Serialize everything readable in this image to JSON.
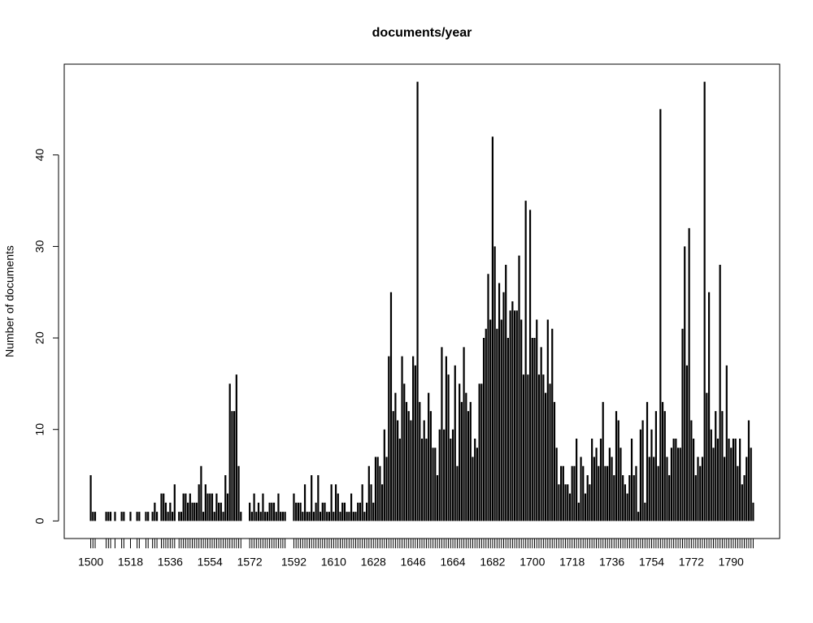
{
  "chart_data": {
    "type": "bar",
    "title": "documents/year",
    "y_label": "Number of documents",
    "color": "#000000",
    "x": [
      1500,
      1501,
      1502,
      1507,
      1508,
      1509,
      1511,
      1514,
      1515,
      1518,
      1521,
      1522,
      1525,
      1526,
      1528,
      1529,
      1530,
      1532,
      1533,
      1534,
      1535,
      1536,
      1537,
      1538,
      1540,
      1541,
      1542,
      1543,
      1544,
      1545,
      1546,
      1547,
      1548,
      1549,
      1550,
      1551,
      1552,
      1553,
      1554,
      1555,
      1556,
      1557,
      1558,
      1559,
      1560,
      1561,
      1562,
      1563,
      1564,
      1565,
      1566,
      1567,
      1568,
      1572,
      1573,
      1574,
      1575,
      1576,
      1577,
      1578,
      1579,
      1580,
      1581,
      1582,
      1583,
      1584,
      1585,
      1586,
      1587,
      1588,
      1592,
      1593,
      1594,
      1595,
      1596,
      1597,
      1598,
      1599,
      1600,
      1601,
      1602,
      1603,
      1604,
      1605,
      1606,
      1607,
      1608,
      1609,
      1610,
      1611,
      1612,
      1613,
      1614,
      1615,
      1616,
      1617,
      1618,
      1619,
      1620,
      1621,
      1622,
      1623,
      1624,
      1625,
      1626,
      1627,
      1628,
      1629,
      1630,
      1631,
      1632,
      1633,
      1634,
      1635,
      1636,
      1637,
      1638,
      1639,
      1640,
      1641,
      1642,
      1643,
      1644,
      1645,
      1646,
      1647,
      1648,
      1649,
      1650,
      1651,
      1652,
      1653,
      1654,
      1655,
      1656,
      1657,
      1658,
      1659,
      1660,
      1661,
      1662,
      1663,
      1664,
      1665,
      1666,
      1667,
      1668,
      1669,
      1670,
      1671,
      1672,
      1673,
      1674,
      1675,
      1676,
      1677,
      1678,
      1679,
      1680,
      1681,
      1682,
      1683,
      1684,
      1685,
      1686,
      1687,
      1688,
      1689,
      1690,
      1691,
      1692,
      1693,
      1694,
      1695,
      1696,
      1697,
      1698,
      1699,
      1700,
      1701,
      1702,
      1703,
      1704,
      1705,
      1706,
      1707,
      1708,
      1709,
      1710,
      1711,
      1712,
      1713,
      1714,
      1715,
      1716,
      1717,
      1718,
      1719,
      1720,
      1721,
      1722,
      1723,
      1724,
      1725,
      1726,
      1727,
      1728,
      1729,
      1730,
      1731,
      1732,
      1733,
      1734,
      1735,
      1736,
      1737,
      1738,
      1739,
      1740,
      1741,
      1742,
      1743,
      1744,
      1745,
      1746,
      1747,
      1748,
      1749,
      1750,
      1751,
      1752,
      1753,
      1754,
      1755,
      1756,
      1757,
      1758,
      1759,
      1760,
      1761,
      1762,
      1763,
      1764,
      1765,
      1766,
      1767,
      1768,
      1769,
      1770,
      1771,
      1772,
      1773,
      1774,
      1775,
      1776,
      1777,
      1778,
      1779,
      1780,
      1781,
      1782,
      1783,
      1784,
      1785,
      1786,
      1787,
      1788,
      1789,
      1790,
      1791,
      1792,
      1793,
      1794,
      1795,
      1796,
      1797,
      1798,
      1799,
      1800
    ],
    "values": [
      5,
      1,
      1,
      1,
      1,
      1,
      1,
      1,
      1,
      1,
      1,
      1,
      1,
      1,
      1,
      2,
      1,
      3,
      3,
      2,
      1,
      2,
      1,
      4,
      1,
      1,
      3,
      3,
      2,
      3,
      2,
      2,
      2,
      4,
      6,
      1,
      4,
      3,
      3,
      3,
      1,
      3,
      2,
      2,
      1,
      5,
      3,
      15,
      12,
      12,
      16,
      6,
      1,
      2,
      1,
      3,
      1,
      2,
      1,
      3,
      1,
      1,
      2,
      2,
      2,
      1,
      3,
      1,
      1,
      1,
      3,
      2,
      2,
      2,
      1,
      4,
      1,
      1,
      5,
      1,
      2,
      5,
      1,
      2,
      2,
      1,
      1,
      4,
      1,
      4,
      3,
      1,
      2,
      2,
      1,
      1,
      3,
      1,
      1,
      2,
      2,
      4,
      1,
      2,
      6,
      4,
      2,
      7,
      7,
      6,
      4,
      10,
      7,
      18,
      25,
      12,
      14,
      11,
      9,
      18,
      15,
      13,
      12,
      11,
      18,
      17,
      48,
      13,
      9,
      11,
      9,
      14,
      12,
      8,
      8,
      5,
      10,
      19,
      10,
      18,
      16,
      9,
      10,
      17,
      6,
      15,
      13,
      19,
      14,
      12,
      13,
      7,
      9,
      8,
      15,
      15,
      20,
      21,
      27,
      22,
      42,
      30,
      21,
      26,
      22,
      25,
      28,
      20,
      23,
      24,
      23,
      23,
      29,
      22,
      16,
      35,
      16,
      34,
      20,
      20,
      22,
      16,
      19,
      16,
      14,
      22,
      15,
      21,
      13,
      8,
      4,
      6,
      6,
      4,
      4,
      3,
      6,
      6,
      9,
      2,
      7,
      6,
      3,
      5,
      4,
      9,
      7,
      8,
      6,
      9,
      13,
      6,
      6,
      8,
      7,
      5,
      12,
      11,
      8,
      5,
      4,
      3,
      5,
      9,
      5,
      6,
      1,
      10,
      11,
      2,
      13,
      7,
      10,
      7,
      12,
      6,
      45,
      13,
      12,
      7,
      5,
      8,
      9,
      9,
      8,
      8,
      21,
      30,
      17,
      32,
      11,
      9,
      5,
      7,
      6,
      7,
      48,
      14,
      25,
      10,
      8,
      12,
      9,
      28,
      12,
      7,
      17,
      9,
      8,
      9,
      9,
      6,
      9,
      4,
      5,
      7,
      11,
      8,
      2
    ],
    "xlim": [
      1488,
      1812
    ],
    "xticks": [
      1500,
      1518,
      1536,
      1554,
      1572,
      1592,
      1610,
      1628,
      1646,
      1664,
      1682,
      1700,
      1718,
      1736,
      1754,
      1772,
      1790
    ],
    "ylim": [
      -1.92,
      49.92
    ],
    "yticks": [
      0,
      10,
      20,
      30,
      40
    ],
    "grid": false
  }
}
